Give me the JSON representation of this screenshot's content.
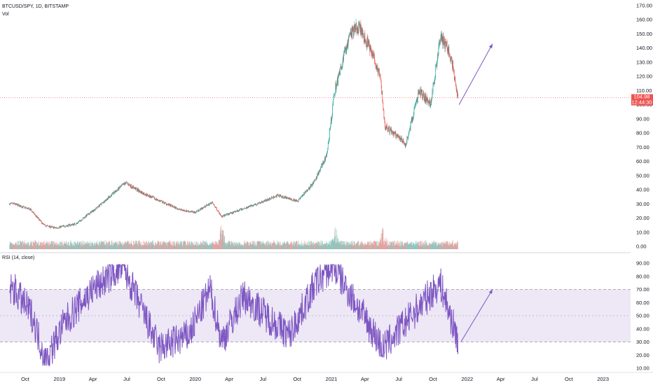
{
  "header": {
    "symbol": "BTCUSD/SPY, 1D, BITSTAMP",
    "volume_label": "Vol",
    "rsi_label": "RSI (14, close)"
  },
  "price_badge": {
    "value": "104.98",
    "countdown": "12:44:30",
    "color": "#ef5350"
  },
  "colors": {
    "up": "#26a69a",
    "down": "#ef5350",
    "rsi_line": "#7e57c2",
    "rsi_band": "#ede7f6",
    "arrow": "#7e57c2"
  },
  "chart_data": [
    {
      "type": "candlestick",
      "title": "BTCUSD/SPY, 1D, BITSTAMP",
      "y_ticks": [
        "170.00",
        "160.00",
        "150.00",
        "140.00",
        "130.00",
        "120.00",
        "110.00",
        "100.00",
        "90.00",
        "80.00",
        "70.00",
        "60.00",
        "50.00",
        "40.00",
        "30.00",
        "20.00",
        "10.00",
        "0.00"
      ],
      "ylim": [
        0,
        170
      ],
      "last_price": 104.98,
      "close_path": [
        {
          "x": "2018-09-01",
          "y": 30
        },
        {
          "x": "2018-10-15",
          "y": 26
        },
        {
          "x": "2018-11-20",
          "y": 15
        },
        {
          "x": "2018-12-20",
          "y": 13
        },
        {
          "x": "2019-02-15",
          "y": 16
        },
        {
          "x": "2019-04-10",
          "y": 27
        },
        {
          "x": "2019-06-28",
          "y": 45
        },
        {
          "x": "2019-08-10",
          "y": 38
        },
        {
          "x": "2019-09-20",
          "y": 33
        },
        {
          "x": "2019-11-20",
          "y": 26
        },
        {
          "x": "2019-12-31",
          "y": 24
        },
        {
          "x": "2020-02-15",
          "y": 31
        },
        {
          "x": "2020-03-13",
          "y": 21
        },
        {
          "x": "2020-04-20",
          "y": 25
        },
        {
          "x": "2020-06-15",
          "y": 30
        },
        {
          "x": "2020-08-10",
          "y": 36
        },
        {
          "x": "2020-10-01",
          "y": 32
        },
        {
          "x": "2020-11-15",
          "y": 45
        },
        {
          "x": "2020-12-20",
          "y": 65
        },
        {
          "x": "2021-01-10",
          "y": 110
        },
        {
          "x": "2021-02-20",
          "y": 150
        },
        {
          "x": "2021-03-15",
          "y": 155
        },
        {
          "x": "2021-04-15",
          "y": 140
        },
        {
          "x": "2021-05-12",
          "y": 120
        },
        {
          "x": "2021-05-25",
          "y": 85
        },
        {
          "x": "2021-07-20",
          "y": 72
        },
        {
          "x": "2021-08-25",
          "y": 110
        },
        {
          "x": "2021-09-25",
          "y": 100
        },
        {
          "x": "2021-10-20",
          "y": 148
        },
        {
          "x": "2021-11-10",
          "y": 140
        },
        {
          "x": "2021-11-25",
          "y": 125
        },
        {
          "x": "2021-12-06",
          "y": 105
        }
      ],
      "annotation_arrow": {
        "from": {
          "x": "2021-12-10",
          "y": 100
        },
        "to": {
          "x": "2022-03-10",
          "y": 143
        }
      }
    },
    {
      "type": "bar",
      "title": "Vol",
      "note": "volume histogram, colored by candle direction",
      "peak_dates": [
        "2020-03-12",
        "2021-01-11",
        "2021-05-19"
      ]
    },
    {
      "type": "line",
      "title": "RSI (14, close)",
      "y_ticks": [
        "90.00",
        "80.00",
        "70.00",
        "60.00",
        "50.00",
        "40.00",
        "30.00",
        "20.00",
        "10.00"
      ],
      "ylim": [
        10,
        90
      ],
      "bands": {
        "upper": 70,
        "middle": 50,
        "lower": 30
      },
      "path": [
        {
          "x": "2018-09-01",
          "y": 70
        },
        {
          "x": "2018-10-20",
          "y": 50
        },
        {
          "x": "2018-11-25",
          "y": 15
        },
        {
          "x": "2019-01-15",
          "y": 45
        },
        {
          "x": "2019-04-01",
          "y": 70
        },
        {
          "x": "2019-06-20",
          "y": 88
        },
        {
          "x": "2019-09-25",
          "y": 25
        },
        {
          "x": "2019-12-15",
          "y": 35
        },
        {
          "x": "2020-02-10",
          "y": 70
        },
        {
          "x": "2020-03-12",
          "y": 30
        },
        {
          "x": "2020-05-10",
          "y": 65
        },
        {
          "x": "2020-09-10",
          "y": 35
        },
        {
          "x": "2020-11-20",
          "y": 75
        },
        {
          "x": "2021-01-05",
          "y": 88
        },
        {
          "x": "2021-05-20",
          "y": 25
        },
        {
          "x": "2021-07-20",
          "y": 45
        },
        {
          "x": "2021-10-20",
          "y": 75
        },
        {
          "x": "2021-12-05",
          "y": 33
        }
      ],
      "annotation_arrow": {
        "from": {
          "x": "2021-12-15",
          "y": 30
        },
        "to": {
          "x": "2022-03-10",
          "y": 70
        }
      }
    }
  ],
  "x_axis": {
    "labels": [
      "Oct",
      "2019",
      "Apr",
      "Jul",
      "Oct",
      "2020",
      "Apr",
      "Jul",
      "Oct",
      "2021",
      "Apr",
      "Jul",
      "Oct",
      "2022",
      "Apr",
      "Jul",
      "Oct",
      "2023"
    ]
  }
}
